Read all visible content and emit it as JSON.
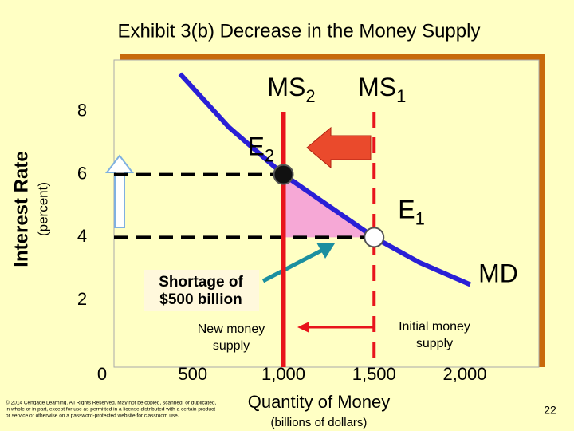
{
  "chart_data": {
    "type": "money-market",
    "title": "Exhibit 3(b) Decrease in the Money Supply",
    "y_label": "Interest Rate",
    "y_sublabel": "(percent)",
    "x_label": "Quantity of Money",
    "x_sublabel": "(billions of dollars)",
    "xlim": [
      0,
      2400
    ],
    "ylim": [
      0,
      10
    ],
    "xticks": [
      0,
      500,
      {
        "value": 1000,
        "label": "1,000"
      },
      {
        "value": 1500,
        "label": "1,500"
      },
      {
        "value": 2000,
        "label": "2,000"
      }
    ],
    "yticks": [
      2,
      4,
      6,
      8
    ],
    "supply": [
      {
        "name": "MS",
        "sub": "2",
        "x": 1000,
        "color": "#e8141c",
        "style": "solid"
      },
      {
        "name": "MS",
        "sub": "1",
        "x": 1500,
        "color": "#e8141c",
        "style": "dashed"
      }
    ],
    "demand": {
      "name": "MD",
      "color": "#2a1fd6",
      "x": [
        430,
        700,
        1000,
        1250,
        1500,
        1750,
        2030
      ],
      "y": [
        9.2,
        7.5,
        6,
        5,
        4,
        3.2,
        2.5
      ]
    },
    "equilibria": [
      {
        "name": "E",
        "sub": "2",
        "x": 1000,
        "y": 6
      },
      {
        "name": "E",
        "sub": "1",
        "x": 1500,
        "y": 4
      }
    ],
    "shortage_label": [
      "Shortage of",
      "$500 billion"
    ],
    "new_supply_label": [
      "New money",
      "supply"
    ],
    "initial_supply_label": [
      "Initial money",
      "supply"
    ]
  },
  "footer": {
    "copyright": [
      "© 2014 Cengage Learning. All Rights Reserved. May not be copied, scanned, or duplicated,",
      "in whole or in part, except for use as permitted in a license distributed with a certain product",
      "or service or otherwise on a password-protected website for classroom use."
    ],
    "page_number": "22"
  }
}
